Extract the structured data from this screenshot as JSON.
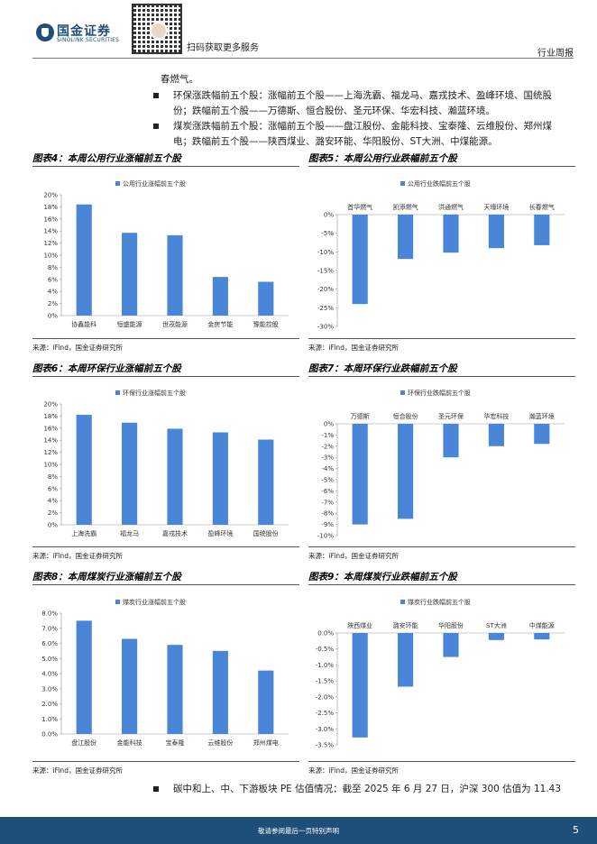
{
  "header": {
    "brand_cn": "国金证券",
    "brand_en": "SINOLINK SECURITIES",
    "qr_caption": "扫码获取更多服务",
    "section": "行业周报"
  },
  "body": {
    "lead": "春燃气。",
    "bullets": [
      {
        "text": "环保涨跌幅前五个股：涨幅前五个股——上海洗霸、福龙马、嘉戎技术、盈峰环境、国统股份；跌幅前五个股——万德斯、恒合股份、圣元环保、华宏科技、瀚蓝环境。"
      },
      {
        "text": "煤炭涨跌幅前五个股：涨幅前五个股——盘江股份、金能科技、宝泰隆、云维股份、郑州煤电；跌幅前五个股——陕西煤业、潞安环能、华阳股份、ST大洲、中煤能源。"
      }
    ],
    "bottom_bullet": "碳中和上、中、下游板块 PE 估值情况：截至 2025 年 6 月 27 日，沪深 300 估值为 11.43"
  },
  "figures": [
    {
      "title": "图表4：本周公用行业涨幅前五个股",
      "source": "来源：iFind，国金证券研究所"
    },
    {
      "title": "图表5：本周公用行业跌幅前五个股",
      "source": "来源：iFind，国金证券研究所"
    },
    {
      "title": "图表6：本周环保行业涨幅前五个股",
      "source": "来源：iFind，国金证券研究所"
    },
    {
      "title": "图表7：本周环保行业跌幅前五个股",
      "source": "来源：iFind，国金证券研究所"
    },
    {
      "title": "图表8：本周煤炭行业涨幅前五个股",
      "source": "来源：iFind，国金证券研究所"
    },
    {
      "title": "图表9：本周煤炭行业跌幅前五个股",
      "source": "来源：iFind，国金证券研究所"
    }
  ],
  "footer": {
    "disclaimer": "敬请参阅最后一页特别声明",
    "page": "5"
  },
  "chart_data": [
    {
      "type": "bar",
      "orientation": "up",
      "legend": "公用行业涨幅前五个股",
      "categories": [
        "协鑫能科",
        "恒盛能源",
        "世茂能源",
        "金房节能",
        "豫能控股"
      ],
      "values": [
        18.4,
        13.7,
        13.3,
        6.4,
        5.6
      ],
      "yticks": [
        "0%",
        "2%",
        "4%",
        "6%",
        "8%",
        "10%",
        "12%",
        "14%",
        "16%",
        "18%",
        "20%"
      ],
      "ylim": [
        0,
        20
      ],
      "color": "#4a86d8"
    },
    {
      "type": "bar",
      "orientation": "down",
      "legend": "公用行业跌幅前五个股",
      "categories": [
        "首华燃气",
        "凯添燃气",
        "洪通燃气",
        "天壕环境",
        "长春燃气"
      ],
      "values": [
        -24.0,
        -11.9,
        -10.2,
        -9.0,
        -8.2
      ],
      "yticks": [
        "0%",
        "-5%",
        "-10%",
        "-15%",
        "-20%",
        "-25%",
        "-30%"
      ],
      "ylim": [
        -30,
        0
      ],
      "color": "#4a86d8"
    },
    {
      "type": "bar",
      "orientation": "up",
      "legend": "环保行业涨幅前五个股",
      "categories": [
        "上海洗霸",
        "福龙马",
        "嘉戎技术",
        "盈峰环境",
        "国统股份"
      ],
      "values": [
        18.2,
        16.9,
        15.9,
        15.3,
        14.1
      ],
      "yticks": [
        "0%",
        "2%",
        "4%",
        "6%",
        "8%",
        "10%",
        "12%",
        "14%",
        "16%",
        "18%",
        "20%"
      ],
      "ylim": [
        0,
        20
      ],
      "color": "#4a86d8"
    },
    {
      "type": "bar",
      "orientation": "down",
      "legend": "环保行业跌幅前五个股",
      "categories": [
        "万德斯",
        "恒合股份",
        "圣元环保",
        "华宏科技",
        "瀚蓝环境"
      ],
      "values": [
        -9.0,
        -8.5,
        -3.0,
        -2.0,
        -1.8
      ],
      "yticks": [
        "0%",
        "-1%",
        "-2%",
        "-3%",
        "-4%",
        "-5%",
        "-6%",
        "-7%",
        "-8%",
        "-9%",
        "-10%"
      ],
      "ylim": [
        -10,
        0
      ],
      "color": "#4a86d8"
    },
    {
      "type": "bar",
      "orientation": "up",
      "legend": "煤炭行业涨幅前五个股",
      "categories": [
        "盘江股份",
        "金能科技",
        "宝泰隆",
        "云维股份",
        "郑州煤电"
      ],
      "values": [
        7.5,
        6.3,
        5.9,
        5.5,
        4.2
      ],
      "yticks": [
        "0.0%",
        "1.0%",
        "2.0%",
        "3.0%",
        "4.0%",
        "5.0%",
        "6.0%",
        "7.0%",
        "8.0%"
      ],
      "ylim": [
        0,
        8
      ],
      "color": "#4a86d8"
    },
    {
      "type": "bar",
      "orientation": "down",
      "legend": "煤炭行业跌幅前五个股",
      "categories": [
        "陕西煤业",
        "潞安环能",
        "华阳股份",
        "ST大洲",
        "中煤能源"
      ],
      "values": [
        -3.27,
        -1.68,
        -0.75,
        -0.22,
        -0.2
      ],
      "yticks": [
        "0.0%",
        "-0.5%",
        "-1.0%",
        "-1.5%",
        "-2.0%",
        "-2.5%",
        "-3.0%",
        "-3.5%"
      ],
      "ylim": [
        -3.5,
        0
      ],
      "color": "#4a86d8"
    }
  ]
}
